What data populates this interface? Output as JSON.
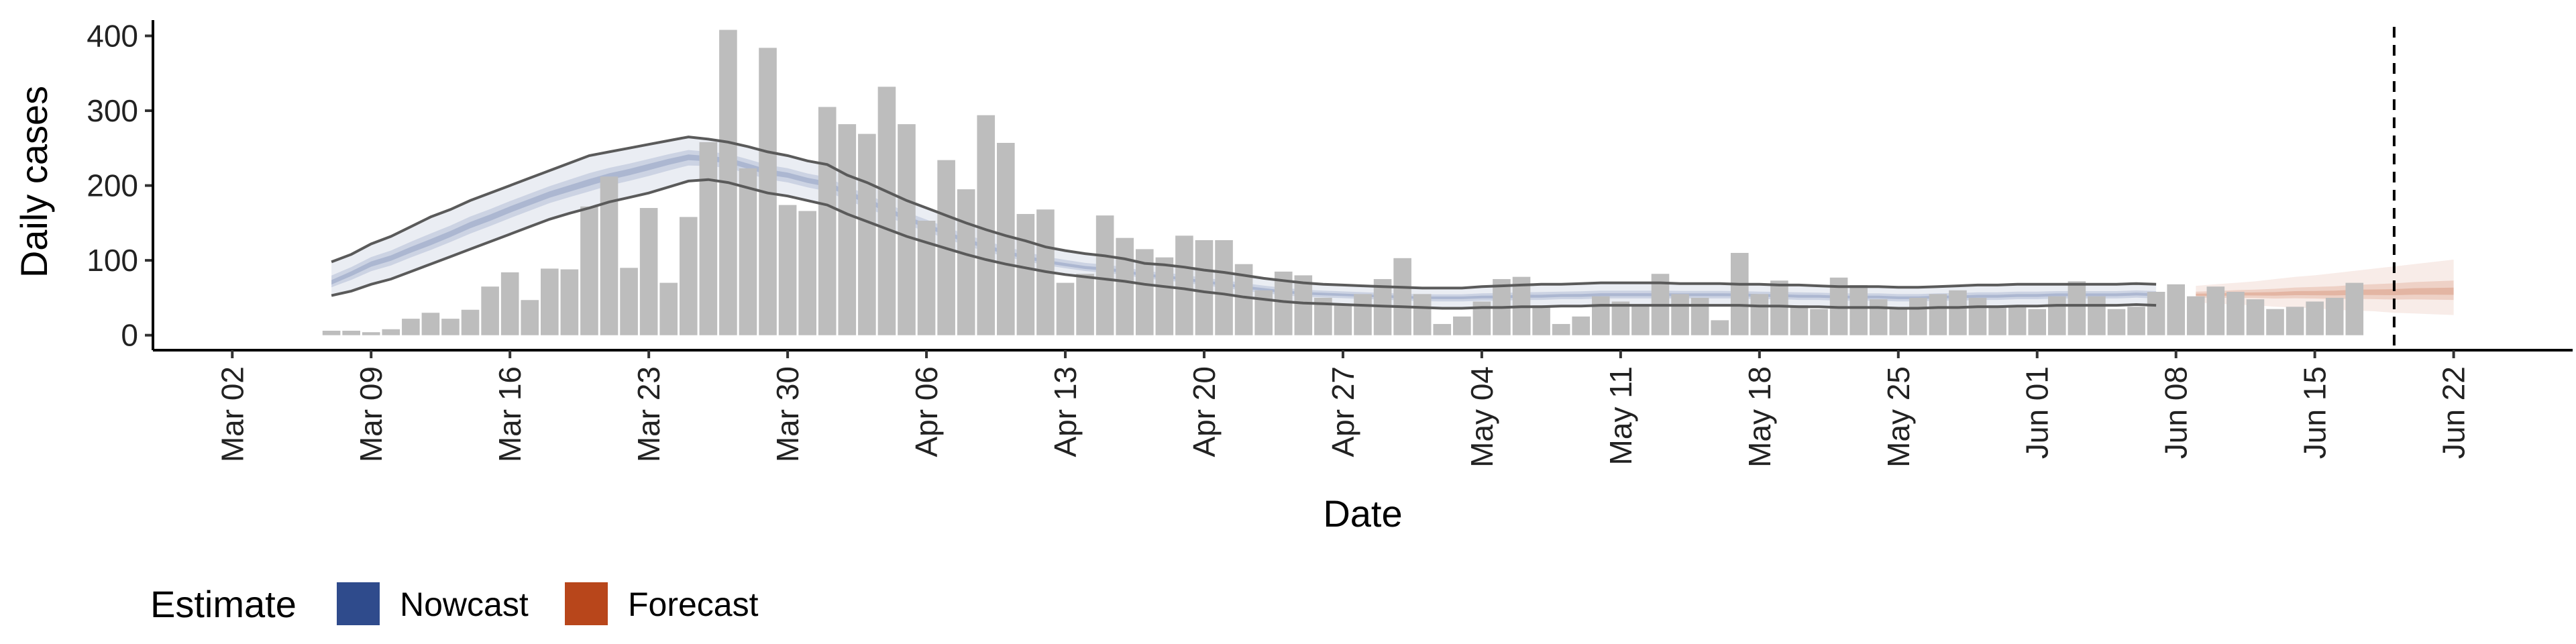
{
  "chart_data": {
    "type": "bar",
    "title": "",
    "xlabel": "Date",
    "ylabel": "Daily cases",
    "ylim": [
      -20,
      430
    ],
    "yticks": [
      "0",
      "100",
      "200",
      "300",
      "400"
    ],
    "xlim": [
      "2020-02-27",
      "2020-06-28"
    ],
    "xticks": [
      {
        "date": "2020-03-02",
        "label": "Mar 02"
      },
      {
        "date": "2020-03-09",
        "label": "Mar 09"
      },
      {
        "date": "2020-03-16",
        "label": "Mar 16"
      },
      {
        "date": "2020-03-23",
        "label": "Mar 23"
      },
      {
        "date": "2020-03-30",
        "label": "Mar 30"
      },
      {
        "date": "2020-04-06",
        "label": "Apr 06"
      },
      {
        "date": "2020-04-13",
        "label": "Apr 13"
      },
      {
        "date": "2020-04-20",
        "label": "Apr 20"
      },
      {
        "date": "2020-04-27",
        "label": "Apr 27"
      },
      {
        "date": "2020-05-04",
        "label": "May 04"
      },
      {
        "date": "2020-05-11",
        "label": "May 11"
      },
      {
        "date": "2020-05-18",
        "label": "May 18"
      },
      {
        "date": "2020-05-25",
        "label": "May 25"
      },
      {
        "date": "2020-06-01",
        "label": "Jun 01"
      },
      {
        "date": "2020-06-08",
        "label": "Jun 08"
      },
      {
        "date": "2020-06-15",
        "label": "Jun 15"
      },
      {
        "date": "2020-06-22",
        "label": "Jun 22"
      }
    ],
    "bars": {
      "start_date": "2020-03-07",
      "color": "#bdbdbd",
      "values": [
        6,
        6,
        4,
        8,
        22,
        30,
        22,
        34,
        65,
        84,
        47,
        89,
        88,
        172,
        212,
        90,
        170,
        70,
        158,
        258,
        408,
        223,
        384,
        174,
        166,
        305,
        282,
        269,
        332,
        282,
        153,
        234,
        195,
        294,
        257,
        162,
        168,
        70,
        82,
        160,
        130,
        115,
        104,
        133,
        127,
        127,
        95,
        60,
        85,
        80,
        50,
        40,
        55,
        75,
        103,
        55,
        15,
        25,
        45,
        75,
        78,
        40,
        15,
        25,
        52,
        45,
        40,
        82,
        55,
        50,
        20,
        110,
        55,
        73,
        40,
        35,
        77,
        67,
        48,
        35,
        50,
        55,
        60,
        50,
        40,
        40,
        35,
        52,
        72,
        52,
        35,
        38,
        58,
        68,
        52,
        65,
        58,
        48,
        35,
        38,
        45,
        50,
        70
      ]
    },
    "series": [
      {
        "name": "Nowcast",
        "color": "#2f4b8c",
        "start_date": "2020-03-07",
        "median": [
          70,
          82,
          95,
          103,
          114,
          124,
          135,
          147,
          157,
          168,
          178,
          188,
          196,
          204,
          212,
          218,
          225,
          232,
          238,
          236,
          234,
          226,
          218,
          214,
          207,
          202,
          190,
          180,
          168,
          156,
          146,
          136,
          126,
          118,
          110,
          104,
          98,
          94,
          90,
          88,
          85,
          80,
          78,
          75,
          71,
          68,
          64,
          61,
          58,
          56,
          55,
          54,
          53,
          52,
          51,
          50,
          50,
          50,
          51,
          51,
          52,
          52,
          53,
          53,
          54,
          54,
          54,
          54,
          54,
          54,
          54,
          54,
          53,
          53,
          52,
          52,
          51,
          51,
          51,
          50,
          50,
          51,
          51,
          52,
          52,
          53,
          53,
          54,
          54,
          54,
          54,
          55,
          54
        ],
        "lower90": [
          53,
          59,
          68,
          75,
          85,
          95,
          105,
          115,
          125,
          135,
          145,
          155,
          163,
          170,
          178,
          184,
          190,
          198,
          206,
          208,
          204,
          197,
          190,
          186,
          180,
          174,
          162,
          152,
          142,
          132,
          124,
          116,
          108,
          101,
          95,
          90,
          85,
          81,
          78,
          75,
          72,
          68,
          65,
          62,
          58,
          55,
          51,
          48,
          45,
          43,
          42,
          41,
          40,
          39,
          38,
          37,
          36,
          36,
          37,
          37,
          38,
          38,
          39,
          39,
          40,
          40,
          40,
          40,
          40,
          40,
          40,
          40,
          39,
          39,
          38,
          38,
          37,
          37,
          37,
          36,
          36,
          37,
          37,
          38,
          38,
          39,
          39,
          40,
          40,
          40,
          40,
          41,
          40
        ],
        "upper90": [
          98,
          108,
          122,
          132,
          145,
          158,
          168,
          180,
          190,
          200,
          210,
          220,
          230,
          240,
          245,
          250,
          255,
          260,
          265,
          262,
          258,
          252,
          245,
          240,
          233,
          228,
          214,
          204,
          192,
          180,
          170,
          160,
          150,
          141,
          133,
          126,
          118,
          113,
          109,
          106,
          102,
          96,
          94,
          91,
          87,
          84,
          80,
          76,
          73,
          70,
          68,
          67,
          66,
          65,
          64,
          63,
          63,
          63,
          65,
          66,
          67,
          68,
          68,
          69,
          70,
          70,
          70,
          70,
          69,
          69,
          69,
          68,
          68,
          67,
          67,
          66,
          65,
          65,
          65,
          64,
          64,
          65,
          66,
          67,
          67,
          68,
          68,
          68,
          68,
          68,
          68,
          69,
          68
        ]
      },
      {
        "name": "Forecast",
        "color": "#b8461b",
        "start_date": "2020-06-09",
        "median": [
          54,
          54,
          55,
          55,
          55,
          56,
          56,
          56,
          57,
          57,
          57,
          58,
          58,
          58
        ],
        "lower90": [
          44,
          42,
          41,
          40,
          38,
          37,
          36,
          34,
          33,
          32,
          30,
          29,
          28,
          27
        ],
        "upper90": [
          66,
          68,
          70,
          72,
          75,
          78,
          80,
          83,
          86,
          89,
          92,
          95,
          98,
          101
        ]
      }
    ],
    "vline": {
      "date": "2020-06-19",
      "style": "dashed"
    },
    "legend": {
      "title": "Estimate",
      "position": "bottom-left",
      "items": [
        "Nowcast",
        "Forecast"
      ]
    }
  }
}
